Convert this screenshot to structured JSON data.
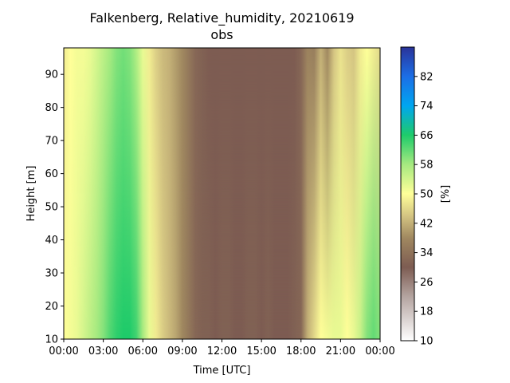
{
  "chart_data": {
    "type": "heatmap",
    "title_line1": "Falkenberg, Relative_humidity, 20210619",
    "title_line2": "obs",
    "xlabel": "Time [UTC]",
    "ylabel": "Height [m]",
    "colorbar_label": "[%]",
    "xlim": [
      0,
      24
    ],
    "ylim": [
      10,
      98
    ],
    "x_ticks": [
      0,
      3,
      6,
      9,
      12,
      15,
      18,
      21,
      24
    ],
    "x_tick_labels": [
      "00:00",
      "03:00",
      "06:00",
      "09:00",
      "12:00",
      "15:00",
      "18:00",
      "21:00",
      "00:00"
    ],
    "y_ticks": [
      10,
      20,
      30,
      40,
      50,
      60,
      70,
      80,
      90
    ],
    "y_tick_labels": [
      "10",
      "20",
      "30",
      "40",
      "50",
      "60",
      "70",
      "80",
      "90"
    ],
    "colorbar_range": [
      10,
      90
    ],
    "colorbar_ticks": [
      10,
      18,
      26,
      34,
      42,
      50,
      58,
      66,
      74,
      82
    ],
    "colorbar_tick_labels": [
      "10",
      "18",
      "26",
      "34",
      "42",
      "50",
      "58",
      "66",
      "74",
      "82"
    ],
    "colormap_stops": [
      {
        "value": 10,
        "color": "#ffffff"
      },
      {
        "value": 22,
        "color": "#b4a4a0"
      },
      {
        "value": 30,
        "color": "#7d5c52"
      },
      {
        "value": 38,
        "color": "#a08860"
      },
      {
        "value": 44,
        "color": "#d4c482"
      },
      {
        "value": 50,
        "color": "#ffff99"
      },
      {
        "value": 58,
        "color": "#a6ea80"
      },
      {
        "value": 66,
        "color": "#1ecb6a"
      },
      {
        "value": 74,
        "color": "#00a6f0"
      },
      {
        "value": 82,
        "color": "#1c6ee6"
      },
      {
        "value": 90,
        "color": "#2a3399"
      }
    ],
    "time_utc_hours": [
      0,
      0.5,
      1,
      1.5,
      2,
      2.5,
      3,
      3.5,
      4,
      4.5,
      5,
      5.5,
      6,
      6.5,
      7,
      7.5,
      8,
      8.5,
      9,
      9.5,
      10,
      10.5,
      11,
      11.5,
      12,
      12.5,
      13,
      13.5,
      14,
      14.5,
      15,
      15.5,
      16,
      16.5,
      17,
      17.5,
      18,
      18.5,
      19,
      19.5,
      20,
      20.5,
      21,
      21.5,
      22,
      22.5,
      23,
      23.5,
      24
    ],
    "rh_near_surface_percent": [
      50,
      51,
      52,
      54,
      56,
      58,
      60,
      63,
      65,
      66,
      66,
      64,
      58,
      52,
      48,
      45,
      43,
      41,
      38,
      35,
      32,
      31,
      31,
      30,
      31,
      31,
      30,
      30,
      31,
      31,
      30,
      31,
      30,
      30,
      30,
      31,
      32,
      42,
      46,
      50,
      51,
      52,
      52,
      50,
      52,
      55,
      60,
      62,
      60
    ],
    "rh_top_percent": [
      48,
      50,
      51,
      51,
      52,
      54,
      56,
      58,
      60,
      61,
      60,
      57,
      52,
      48,
      45,
      43,
      42,
      40,
      38,
      35,
      32,
      31,
      30,
      30,
      30,
      30,
      30,
      30,
      30,
      30,
      30,
      30,
      30,
      30,
      30,
      30,
      32,
      37,
      36,
      42,
      38,
      44,
      47,
      45,
      44,
      48,
      50,
      48,
      46
    ]
  }
}
